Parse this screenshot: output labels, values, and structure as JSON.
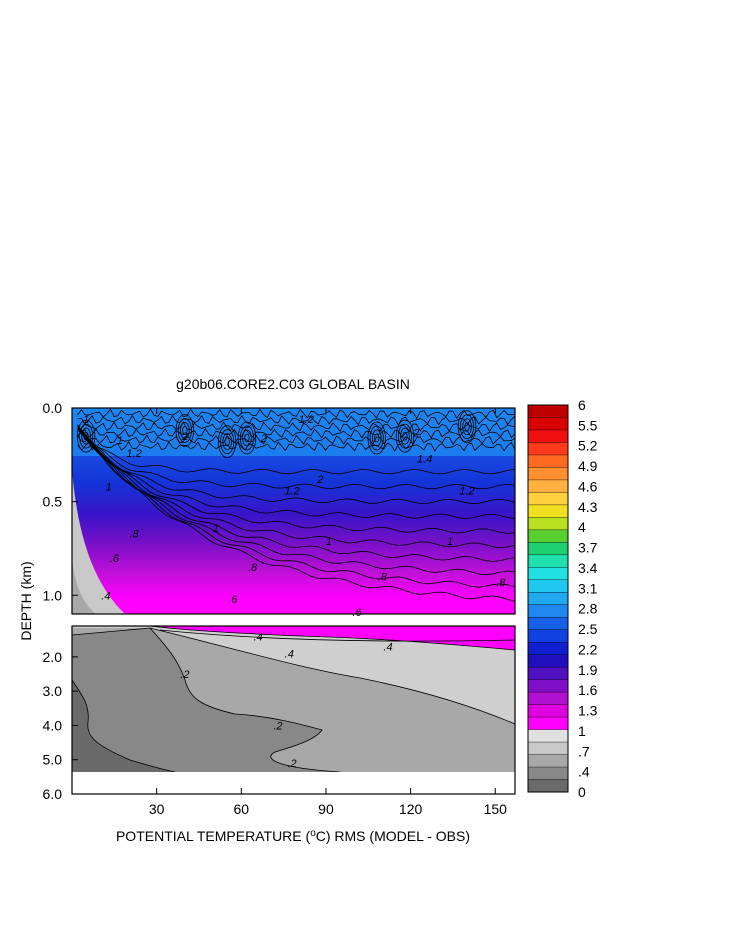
{
  "chart_data": {
    "type": "heatmap",
    "title": "g20b06.CORE2.C03 GLOBAL BASIN",
    "xlabel": "POTENTIAL TEMPERATURE (°C) RMS (MODEL - OBS)",
    "ylabel": "DEPTH (km)",
    "xlim": [
      0,
      157
    ],
    "x_ticks": [
      30,
      60,
      90,
      120,
      150
    ],
    "x_tick_labels": [
      "30",
      "60",
      "90",
      "120",
      "150"
    ],
    "panels": [
      {
        "name": "upper",
        "ylim": [
          0.0,
          1.1
        ],
        "y_ticks": [
          0.0,
          0.5,
          1.0
        ],
        "y_tick_labels": [
          "0.0",
          "0.5",
          "1.0"
        ],
        "contour_labels": [
          {
            "text": "1",
            "x": 5,
            "y": 0.06
          },
          {
            "text": "1",
            "x": 17,
            "y": 0.17
          },
          {
            "text": "1.2",
            "x": 22,
            "y": 0.24
          },
          {
            "text": "2",
            "x": 40,
            "y": 0.15
          },
          {
            "text": "2",
            "x": 68,
            "y": 0.16
          },
          {
            "text": "1.2",
            "x": 83,
            "y": 0.06
          },
          {
            "text": "2",
            "x": 88,
            "y": 0.38
          },
          {
            "text": "1.2",
            "x": 78,
            "y": 0.44
          },
          {
            "text": "2",
            "x": 122,
            "y": 0.13
          },
          {
            "text": "1.4",
            "x": 125,
            "y": 0.27
          },
          {
            "text": "1.2",
            "x": 140,
            "y": 0.44
          },
          {
            "text": "1",
            "x": 13,
            "y": 0.42
          },
          {
            "text": "1",
            "x": 51,
            "y": 0.64
          },
          {
            "text": "1",
            "x": 91,
            "y": 0.71
          },
          {
            "text": "1",
            "x": 134,
            "y": 0.71
          },
          {
            "text": ".8",
            "x": 22,
            "y": 0.67
          },
          {
            "text": ".8",
            "x": 64,
            "y": 0.85
          },
          {
            "text": ".8",
            "x": 110,
            "y": 0.9
          },
          {
            "text": ".8",
            "x": 152,
            "y": 0.93
          },
          {
            "text": ".6",
            "x": 15,
            "y": 0.8
          },
          {
            "text": ".6",
            "x": 57,
            "y": 1.02
          },
          {
            "text": ".6",
            "x": 101,
            "y": 1.09
          },
          {
            "text": ".4",
            "x": 12,
            "y": 1.0
          }
        ]
      },
      {
        "name": "lower",
        "ylim": [
          1.1,
          6.0
        ],
        "y_ticks": [
          2.0,
          3.0,
          4.0,
          5.0,
          6.0
        ],
        "y_tick_labels": [
          "2.0",
          "3.0",
          "4.0",
          "5.0",
          "6.0"
        ],
        "contour_labels": [
          {
            "text": ".4",
            "x": 66,
            "y": 1.4
          },
          {
            "text": ".4",
            "x": 77,
            "y": 1.9
          },
          {
            "text": ".4",
            "x": 112,
            "y": 1.7
          },
          {
            "text": ".2",
            "x": 40,
            "y": 2.5
          },
          {
            "text": ".2",
            "x": 73,
            "y": 4.0
          },
          {
            "text": ".2",
            "x": 78,
            "y": 5.1
          }
        ]
      }
    ],
    "colorbar": {
      "labels": [
        "6",
        "5.5",
        "5.2",
        "4.9",
        "4.6",
        "4.3",
        "4",
        "3.7",
        "3.4",
        "3.1",
        "2.8",
        "2.5",
        "2.2",
        "1.9",
        "1.6",
        "1.3",
        "1",
        ".7",
        ".4",
        "0"
      ],
      "colors_top_to_bottom": [
        "#c00000",
        "#d80000",
        "#f01010",
        "#ff3a1a",
        "#ff6a20",
        "#ff9030",
        "#ffb040",
        "#ffd040",
        "#f0e020",
        "#b8e020",
        "#58d030",
        "#20d070",
        "#20e0b0",
        "#20e0e0",
        "#20c8f0",
        "#20a8f0",
        "#2088f0",
        "#1860e8",
        "#1040e0",
        "#1020d0",
        "#2010c0",
        "#5010c0",
        "#8010c8",
        "#b010d0",
        "#e000e0",
        "#ff00ff",
        "#e0e0e0",
        "#c8c8c8",
        "#a8a8a8",
        "#888888",
        "#6a6a6a"
      ]
    }
  }
}
